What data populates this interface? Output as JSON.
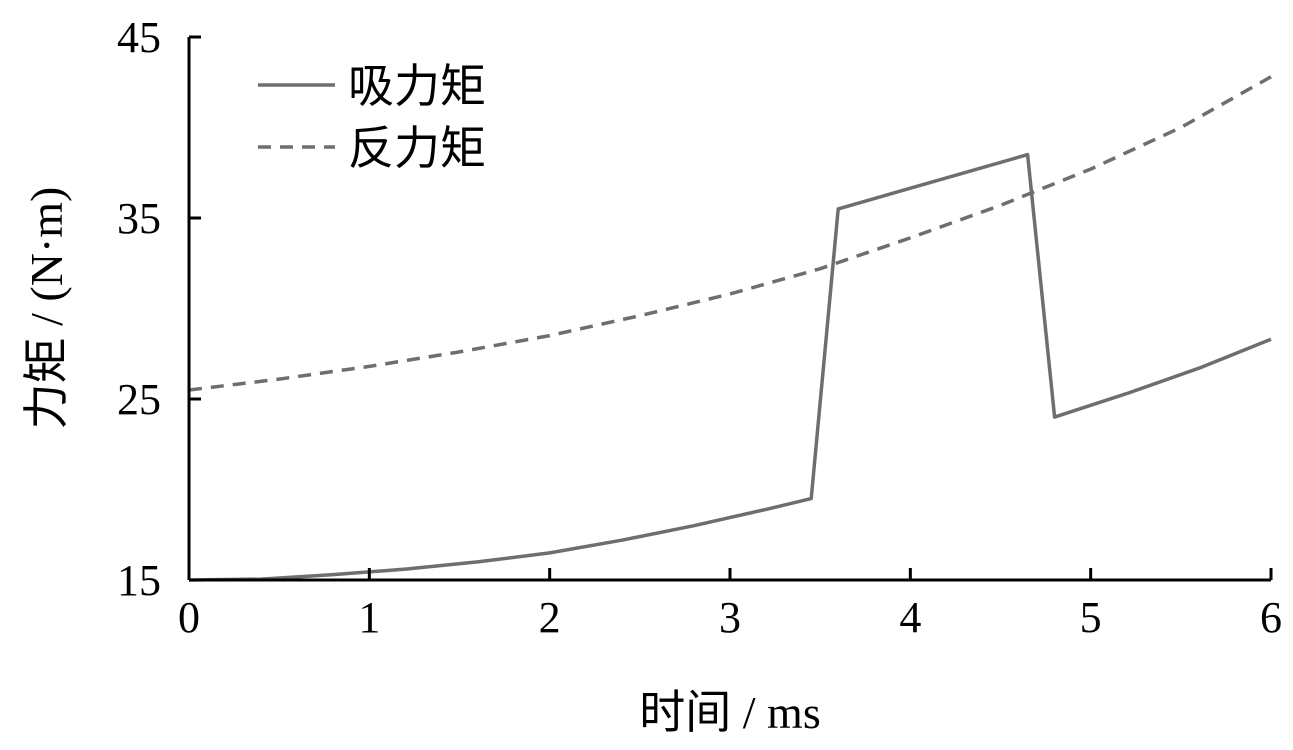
{
  "chart_data": {
    "type": "line",
    "title": "",
    "xlabel": "时间 / ms",
    "ylabel": "力矩 / (N·m)",
    "xlim": [
      0,
      6
    ],
    "ylim": [
      15,
      45
    ],
    "xticks": [
      "0",
      "1",
      "2",
      "3",
      "4",
      "5",
      "6"
    ],
    "yticks": [
      "15",
      "25",
      "35",
      "45"
    ],
    "grid": false,
    "legend_position": "top-left",
    "series": [
      {
        "name": "吸力矩",
        "style": "solid",
        "color": "#6e6e6e",
        "x": [
          0,
          0.4,
          0.8,
          1.2,
          1.6,
          2.0,
          2.4,
          2.8,
          3.2,
          3.45,
          3.6,
          4.65,
          4.8,
          5.2,
          5.6,
          6.0
        ],
        "y": [
          15.0,
          15.05,
          15.3,
          15.6,
          16.0,
          16.5,
          17.2,
          18.0,
          18.9,
          19.5,
          35.5,
          38.5,
          24.0,
          25.3,
          26.7,
          28.3
        ]
      },
      {
        "name": "反力矩",
        "style": "dashed",
        "color": "#6e6e6e",
        "x": [
          0,
          0.5,
          1.0,
          1.5,
          2.0,
          2.5,
          3.0,
          3.5,
          4.0,
          4.5,
          5.0,
          5.5,
          6.0
        ],
        "y": [
          25.5,
          26.1,
          26.8,
          27.6,
          28.5,
          29.6,
          30.8,
          32.2,
          33.9,
          35.7,
          37.7,
          40.0,
          42.8
        ]
      }
    ]
  }
}
